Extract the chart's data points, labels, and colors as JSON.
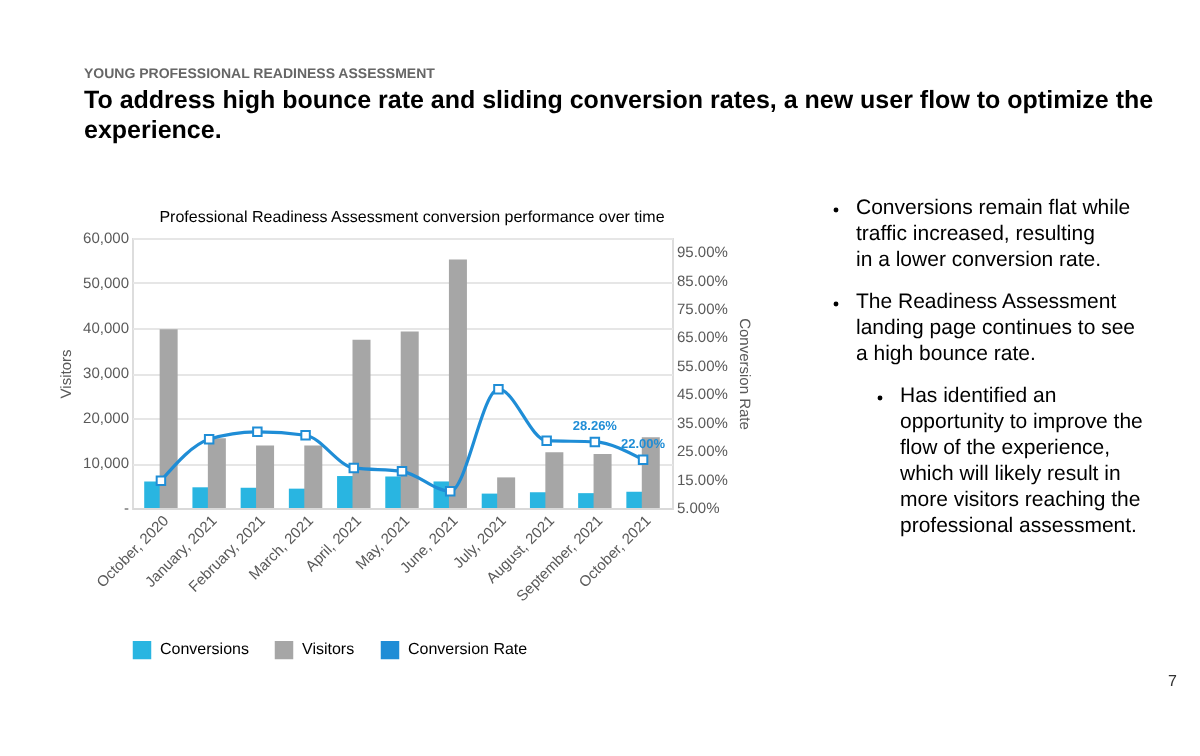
{
  "chart_data": {
    "type": "bar",
    "title": "Professional Readiness Assessment conversion performance over time",
    "categories": [
      "October, 2020",
      "January, 2021",
      "February, 2021",
      "March, 2021",
      "April, 2021",
      "May, 2021",
      "June, 2021",
      "July, 2021",
      "August, 2021",
      "September, 2021",
      "October, 2021"
    ],
    "series": [
      {
        "name": "Conversions",
        "color": "#29b5e1",
        "values": [
          5900,
          4600,
          4500,
          4300,
          7100,
          7000,
          5900,
          3200,
          3500,
          3300,
          3600
        ]
      },
      {
        "name": "Visitors",
        "color": "#a6a6a6",
        "values": [
          39700,
          15500,
          13900,
          13900,
          37400,
          39200,
          55200,
          6800,
          12400,
          12000,
          15700
        ]
      },
      {
        "name": "Conversion Rate",
        "type": "line",
        "axis": "y2",
        "color": "#1f8dd6",
        "values": [
          14.6,
          29.2,
          31.8,
          30.6,
          19.1,
          17.9,
          10.9,
          46.8,
          28.7,
          28.26,
          22.0
        ],
        "value_labels": [
          null,
          null,
          null,
          null,
          null,
          null,
          null,
          null,
          null,
          "28.26%",
          "22.00%"
        ]
      }
    ],
    "ylabel": "Visitors",
    "y2label": "Conversion Rate",
    "ylim": [
      0,
      60000
    ],
    "yticks": [
      {
        "value": 0,
        "label": "-"
      },
      {
        "value": 10000,
        "label": "10,000"
      },
      {
        "value": 20000,
        "label": "20,000"
      },
      {
        "value": 30000,
        "label": "30,000"
      },
      {
        "value": 40000,
        "label": "40,000"
      },
      {
        "value": 50000,
        "label": "50,000"
      },
      {
        "value": 60000,
        "label": "60,000"
      }
    ],
    "y2lim": [
      5,
      100
    ],
    "y2ticks": [
      {
        "value": 5,
        "label": "5.00%"
      },
      {
        "value": 15,
        "label": "15.00%"
      },
      {
        "value": 25,
        "label": "25.00%"
      },
      {
        "value": 35,
        "label": "35.00%"
      },
      {
        "value": 45,
        "label": "45.00%"
      },
      {
        "value": 55,
        "label": "55.00%"
      },
      {
        "value": 65,
        "label": "65.00%"
      },
      {
        "value": 75,
        "label": "75.00%"
      },
      {
        "value": 85,
        "label": "85.00%"
      },
      {
        "value": 95,
        "label": "95.00%"
      }
    ],
    "grid": "y",
    "legend": "bottom",
    "marker": "square",
    "annotations": [
      "YOUNG PROFESSIONAL READINESS ASSESSMENT",
      "To address high bounce rate and sliding conversion rates, a new user flow to optimize the experience.",
      "Conversions remain flat while traffic increased, resulting in a lower conversion rate.",
      "The Readiness Assessment landing page continues to see a high bounce rate.",
      "Has identified an opportunity to improve the flow of the experience, which will likely result in more visitors reaching the professional assessment.",
      "7"
    ]
  }
}
